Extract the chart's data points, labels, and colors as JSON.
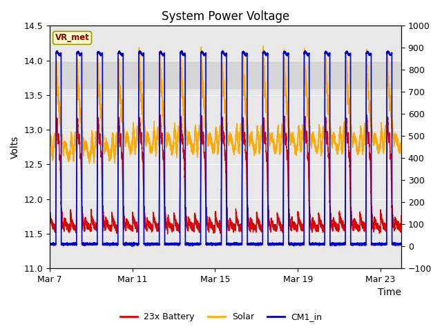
{
  "title": "System Power Voltage",
  "xlabel": "Time",
  "ylabel_left": "Volts",
  "ylim_left": [
    11.0,
    14.5
  ],
  "ylim_right": [
    -100,
    1000
  ],
  "xlim": [
    0,
    17
  ],
  "x_ticks": [
    0,
    4,
    8,
    12,
    16
  ],
  "x_tick_labels": [
    "Mar 7",
    "Mar 11",
    "Mar 15",
    "Mar 19",
    "Mar 23"
  ],
  "shade_ymin": 13.6,
  "shade_ymax": 14.0,
  "vrmet_label": "VR_met",
  "legend_labels": [
    "23x Battery",
    "Solar",
    "CM1_in"
  ],
  "line_colors": [
    "#dd0000",
    "#ffaa00",
    "#0000cc"
  ],
  "background_color": "#ffffff",
  "plot_bg_color": "#e8e8e8",
  "title_fontsize": 12,
  "axis_fontsize": 10
}
